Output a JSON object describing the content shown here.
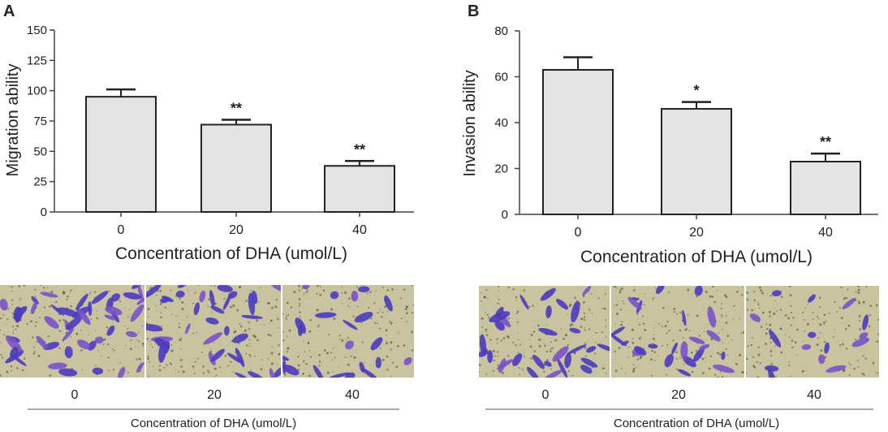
{
  "panels": [
    {
      "letter": "A",
      "chart_data": {
        "type": "bar",
        "title": "",
        "xlabel": "Concentration of DHA (umol/L)",
        "ylabel": "Migration ability",
        "categories": [
          "0",
          "20",
          "40"
        ],
        "values": [
          95,
          72,
          38
        ],
        "errors": [
          6,
          4,
          4
        ],
        "significance": [
          "",
          "**",
          "**"
        ],
        "ylim": [
          0,
          150
        ],
        "yticks": [
          "0",
          "25",
          "50",
          "75",
          "100",
          "125",
          "150"
        ],
        "bar_color": "#e4e4e4"
      },
      "micrographs": {
        "labels": [
          "0",
          "20",
          "40"
        ],
        "caption": "Concentration of DHA (umol/L)",
        "cell_counts": [
          46,
          34,
          22
        ]
      }
    },
    {
      "letter": "B",
      "chart_data": {
        "type": "bar",
        "title": "",
        "xlabel": "Concentration of DHA (umol/L)",
        "ylabel": "Invasion ability",
        "categories": [
          "0",
          "20",
          "40"
        ],
        "values": [
          63,
          46,
          23
        ],
        "errors": [
          5.5,
          3,
          3.5
        ],
        "significance": [
          "",
          "*",
          "**"
        ],
        "ylim": [
          0,
          80
        ],
        "yticks": [
          "0",
          "20",
          "40",
          "60",
          "80"
        ],
        "bar_color": "#e4e4e4"
      },
      "micrographs": {
        "labels": [
          "0",
          "20",
          "40"
        ],
        "caption": "Concentration of DHA (umol/L)",
        "cell_counts": [
          30,
          24,
          15
        ]
      }
    }
  ],
  "colors": {
    "micrograph_bg": "#c9c3a0",
    "cell": "#4a3bbf",
    "cell_alt": "#7a52c8",
    "speck": "#3a3528"
  }
}
